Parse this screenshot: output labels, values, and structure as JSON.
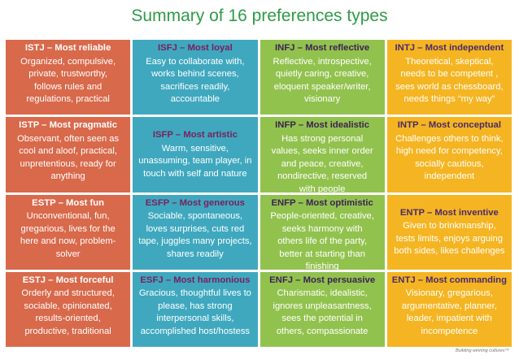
{
  "title": "Summary of 16 preferences types",
  "footer": "Building winning cultures™",
  "colors": {
    "title": "#2e9b47",
    "red": "#d9694b",
    "teal": "#3fa8bf",
    "green": "#92c24e",
    "orange": "#f5b522"
  },
  "cells": [
    {
      "head": "ISTJ – Most reliable",
      "body": "Organized, compulsive,\nprivate, trustworthy,\nfollows rules and\nregulations, practical"
    },
    {
      "head": "ISFJ – Most loyal",
      "body": "Easy to collaborate with,\nworks behind scenes,\nsacrifices readily,\naccountable"
    },
    {
      "head": "INFJ – Most reflective",
      "body": "Reflective, introspective,\nquietly caring, creative,\neloquent speaker/writer,\nvisionary"
    },
    {
      "head": "INTJ – Most independent",
      "body": "Theoretical, skeptical,\nneeds to be competent ,\nsees world as chessboard,\nneeds things “my way”"
    },
    {
      "head": "ISTP – Most pragmatic",
      "body": "Observant, often seen as\ncool and aloof, practical,\nunpretentious, ready for\nanything"
    },
    {
      "head": "ISFP – Most artistic",
      "body": "Warm, sensitive,\nunassuming, team player, in\ntouch with self and nature"
    },
    {
      "head": "INFP – Most idealistic",
      "body": "Has strong personal\nvalues, seeks inner order\nand peace, creative,\nnondirective, reserved\nwith people"
    },
    {
      "head": "INTP – Most conceptual",
      "body": "Challenges others to think,\nhigh need for competency,\nsocially cautious,\nindependent"
    },
    {
      "head": "ESTP – Most fun",
      "body": "Unconventional, fun,\ngregarious, lives for the\nhere and now, problem-\nsolver"
    },
    {
      "head": "ESFP – Most generous",
      "body": "Sociable, spontaneous,\nloves surprises, cuts red\ntape, juggles many projects,\nshares readily"
    },
    {
      "head": "ENFP – Most optimistic",
      "body": "People-oriented, creative,\nseeks harmony with\nothers life of the party,\nbetter at starting than\nfinishing"
    },
    {
      "head": "ENTP – Most inventive",
      "body": "Given to brinkmanship,\ntests limits, enjoys arguing\nboth sides, likes challenges"
    },
    {
      "head": "ESTJ – Most forceful",
      "body": "Orderly and structured,\nsociable, opinionated,\nresults-oriented,\nproductive, traditional"
    },
    {
      "head": "ESFJ – Most harmonious",
      "body": "Gracious, thoughtful lives to\nplease, has strong\ninterpersonal skills,\naccomplished host/hostess"
    },
    {
      "head": "ENFJ – Most persuasive",
      "body": "Charismatic, idealistic,\nignores unpleasantness,\nsees the potential in\nothers, compassionate"
    },
    {
      "head": "ENTJ – Most commanding",
      "body": "Visionary, gregarious,\nargumentative, planner,\nleader, impatient with\nincompetence"
    }
  ]
}
